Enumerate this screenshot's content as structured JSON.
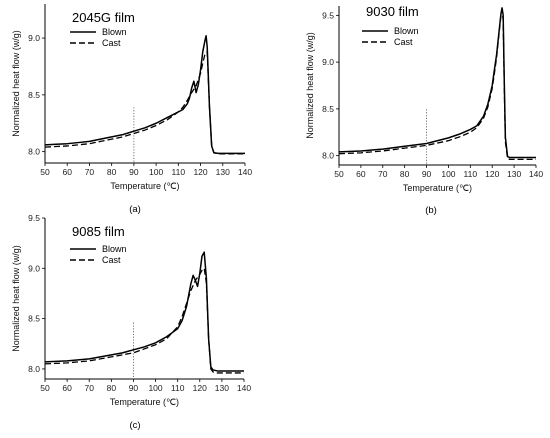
{
  "chart_data": [
    {
      "type": "line",
      "panel_label": "(a)",
      "title": "2045G film",
      "xlabel": "Temperature (℃)",
      "ylabel": "Normalized heat flow (w/g)",
      "xlim": [
        50,
        140
      ],
      "ylim": [
        7.9,
        9.3
      ],
      "xticks": [
        "50",
        "60",
        "70",
        "80",
        "90",
        "100",
        "110",
        "120",
        "130",
        "140"
      ],
      "yticks": [
        "8.0",
        "8.5",
        "9.0"
      ],
      "marker_x": 90,
      "series": [
        {
          "name": "Blown",
          "style": "solid",
          "x": [
            50,
            55,
            60,
            65,
            70,
            75,
            80,
            85,
            90,
            95,
            100,
            105,
            108,
            110,
            112,
            114,
            115,
            116,
            117,
            118,
            119,
            120,
            121,
            122,
            122.5,
            123,
            124,
            125,
            126,
            128,
            130,
            135,
            140
          ],
          "y": [
            8.06,
            8.065,
            8.07,
            8.08,
            8.09,
            8.11,
            8.13,
            8.15,
            8.18,
            8.21,
            8.25,
            8.3,
            8.33,
            8.35,
            8.37,
            8.42,
            8.47,
            8.56,
            8.62,
            8.52,
            8.59,
            8.72,
            8.88,
            8.98,
            9.02,
            8.92,
            8.4,
            8.05,
            7.99,
            7.985,
            7.985,
            7.985,
            7.985
          ]
        },
        {
          "name": "Cast",
          "style": "dashed",
          "x": [
            50,
            55,
            60,
            65,
            70,
            75,
            80,
            85,
            90,
            95,
            100,
            105,
            110,
            112,
            114,
            116,
            118,
            120,
            121,
            122,
            123,
            124,
            125,
            126,
            128,
            130,
            135,
            140
          ],
          "y": [
            8.04,
            8.045,
            8.05,
            8.06,
            8.07,
            8.09,
            8.11,
            8.13,
            8.16,
            8.19,
            8.23,
            8.28,
            8.35,
            8.39,
            8.45,
            8.52,
            8.58,
            8.69,
            8.78,
            8.86,
            8.88,
            8.4,
            8.05,
            7.99,
            7.98,
            7.98,
            7.98,
            7.98
          ]
        }
      ]
    },
    {
      "type": "line",
      "panel_label": "(b)",
      "title": "9030 film",
      "xlabel": "Temperature (℃)",
      "ylabel": "Normalized heat flow (w/g)",
      "xlim": [
        50,
        140
      ],
      "ylim": [
        7.9,
        9.6
      ],
      "xticks": [
        "50",
        "60",
        "70",
        "80",
        "90",
        "100",
        "110",
        "120",
        "130",
        "140"
      ],
      "yticks": [
        "8.0",
        "8.5",
        "9.0",
        "9.5"
      ],
      "marker_x": 90,
      "series": [
        {
          "name": "Blown",
          "style": "solid",
          "x": [
            50,
            60,
            70,
            80,
            90,
            100,
            105,
            110,
            113,
            116,
            118,
            120,
            121,
            122,
            123,
            124,
            124.5,
            125,
            125.5,
            126,
            127,
            128,
            130,
            135,
            140
          ],
          "y": [
            8.04,
            8.05,
            8.07,
            8.1,
            8.13,
            8.19,
            8.23,
            8.28,
            8.32,
            8.42,
            8.55,
            8.75,
            8.92,
            9.08,
            9.3,
            9.52,
            9.58,
            9.5,
            8.8,
            8.2,
            7.99,
            7.98,
            7.98,
            7.98,
            7.98
          ]
        },
        {
          "name": "Cast",
          "style": "dashed",
          "x": [
            50,
            60,
            70,
            80,
            90,
            100,
            105,
            110,
            113,
            116,
            118,
            120,
            121,
            122,
            123,
            124,
            124.5,
            125,
            125.5,
            126,
            127,
            128,
            130,
            135,
            140
          ],
          "y": [
            8.02,
            8.03,
            8.05,
            8.08,
            8.11,
            8.16,
            8.2,
            8.25,
            8.3,
            8.4,
            8.52,
            8.72,
            8.88,
            9.05,
            9.28,
            9.5,
            9.56,
            9.45,
            8.75,
            8.15,
            7.97,
            7.96,
            7.96,
            7.96,
            7.96
          ]
        }
      ]
    },
    {
      "type": "line",
      "panel_label": "(c)",
      "title": "9085 film",
      "xlabel": "Temperature (℃)",
      "ylabel": "Normalized heat flow (w/g)",
      "xlim": [
        50,
        140
      ],
      "ylim": [
        7.9,
        9.5
      ],
      "xticks": [
        "50",
        "60",
        "70",
        "80",
        "90",
        "100",
        "110",
        "120",
        "130",
        "140"
      ],
      "yticks": [
        "8.0",
        "8.5",
        "9.0",
        "9.5"
      ],
      "marker_x": 90,
      "series": [
        {
          "name": "Blown",
          "style": "solid",
          "x": [
            50,
            55,
            60,
            65,
            70,
            75,
            80,
            85,
            90,
            95,
            100,
            105,
            110,
            112,
            114,
            116,
            117,
            118,
            119,
            120,
            121,
            122,
            123,
            124,
            125,
            126,
            128,
            130,
            135,
            140
          ],
          "y": [
            8.07,
            8.075,
            8.08,
            8.09,
            8.1,
            8.12,
            8.14,
            8.16,
            8.19,
            8.22,
            8.26,
            8.32,
            8.4,
            8.48,
            8.62,
            8.85,
            8.93,
            8.88,
            8.82,
            8.95,
            9.12,
            9.16,
            8.9,
            8.3,
            8.02,
            7.99,
            7.98,
            7.98,
            7.98,
            7.98
          ]
        },
        {
          "name": "Cast",
          "style": "dashed",
          "x": [
            50,
            55,
            60,
            65,
            70,
            75,
            80,
            85,
            90,
            95,
            100,
            105,
            110,
            112,
            114,
            116,
            118,
            120,
            121,
            122,
            123,
            124,
            125,
            126,
            128,
            130,
            135,
            140
          ],
          "y": [
            8.05,
            8.055,
            8.06,
            8.07,
            8.08,
            8.1,
            8.12,
            8.14,
            8.16,
            8.2,
            8.24,
            8.3,
            8.42,
            8.52,
            8.65,
            8.78,
            8.88,
            8.94,
            8.98,
            9.0,
            8.85,
            8.3,
            8.0,
            7.97,
            7.96,
            7.96,
            7.96,
            7.96
          ]
        }
      ]
    }
  ]
}
